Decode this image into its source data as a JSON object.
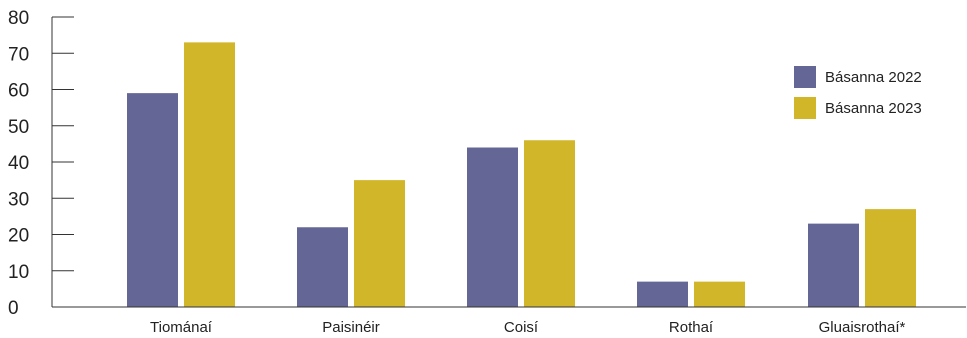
{
  "chart_data": {
    "type": "bar",
    "categories": [
      "Tiománaí",
      "Paisinéir",
      "Coisí",
      "Rothaí",
      "Gluaisrothaí*"
    ],
    "series": [
      {
        "name": "Básanna 2022",
        "values": [
          59,
          22,
          44,
          7,
          23
        ],
        "color": "#646796"
      },
      {
        "name": "Básanna 2023",
        "values": [
          73,
          35,
          46,
          7,
          27
        ],
        "color": "#d2b62a"
      }
    ],
    "ylim": [
      0,
      80
    ],
    "yticks": [
      "0",
      "10",
      "20",
      "30",
      "40",
      "50",
      "60",
      "70",
      "80"
    ],
    "title": "",
    "xlabel": "",
    "ylabel": "",
    "grid": false,
    "legend": "top-right"
  }
}
